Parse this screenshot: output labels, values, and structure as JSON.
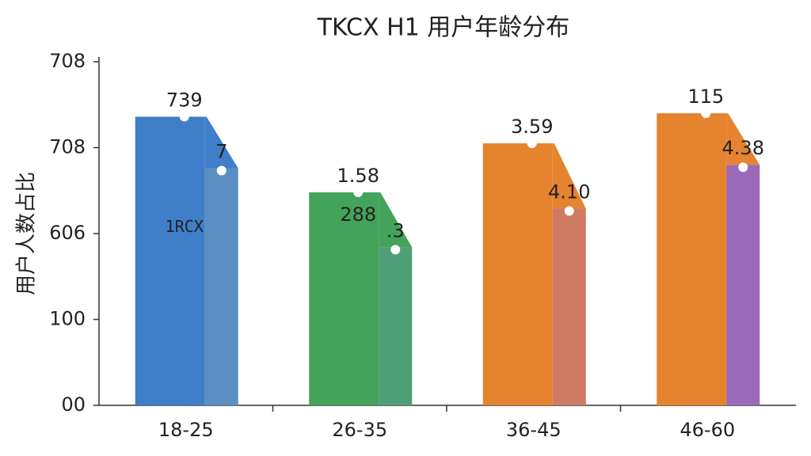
{
  "chart_data": {
    "type": "bar",
    "title": "TKCX H1 用户年龄分布",
    "y_label": "用户人数占比",
    "categories": [
      "18-25",
      "26-35",
      "36-45",
      "46-60"
    ],
    "series": [
      {
        "values": [
          3.36,
          2.48,
          3.05,
          3.4
        ],
        "colors": [
          "#3f7ec8",
          "#44a35a",
          "#e6832e",
          "#e6832e"
        ]
      },
      {
        "values": [
          2.76,
          1.84,
          2.29,
          2.8
        ],
        "colors": [
          "#5b8fc4",
          "#4f9e78",
          "#cf7a62",
          "#9b69b9"
        ]
      }
    ],
    "primary_labels": [
      [
        "739",
        "1RCX"
      ],
      [
        "1.58",
        "288"
      ],
      [
        "3.59"
      ],
      [
        "115"
      ]
    ],
    "secondary_labels": [
      "7",
      ".3",
      "4.10",
      "4.38"
    ],
    "ylim": [
      0,
      4
    ],
    "yticks": [
      {
        "value": 0,
        "label": "00"
      },
      {
        "value": 1,
        "label": "100"
      },
      {
        "value": 2,
        "label": "606"
      },
      {
        "value": 3,
        "label": "708"
      },
      {
        "value": 4,
        "label": "708"
      }
    ]
  }
}
